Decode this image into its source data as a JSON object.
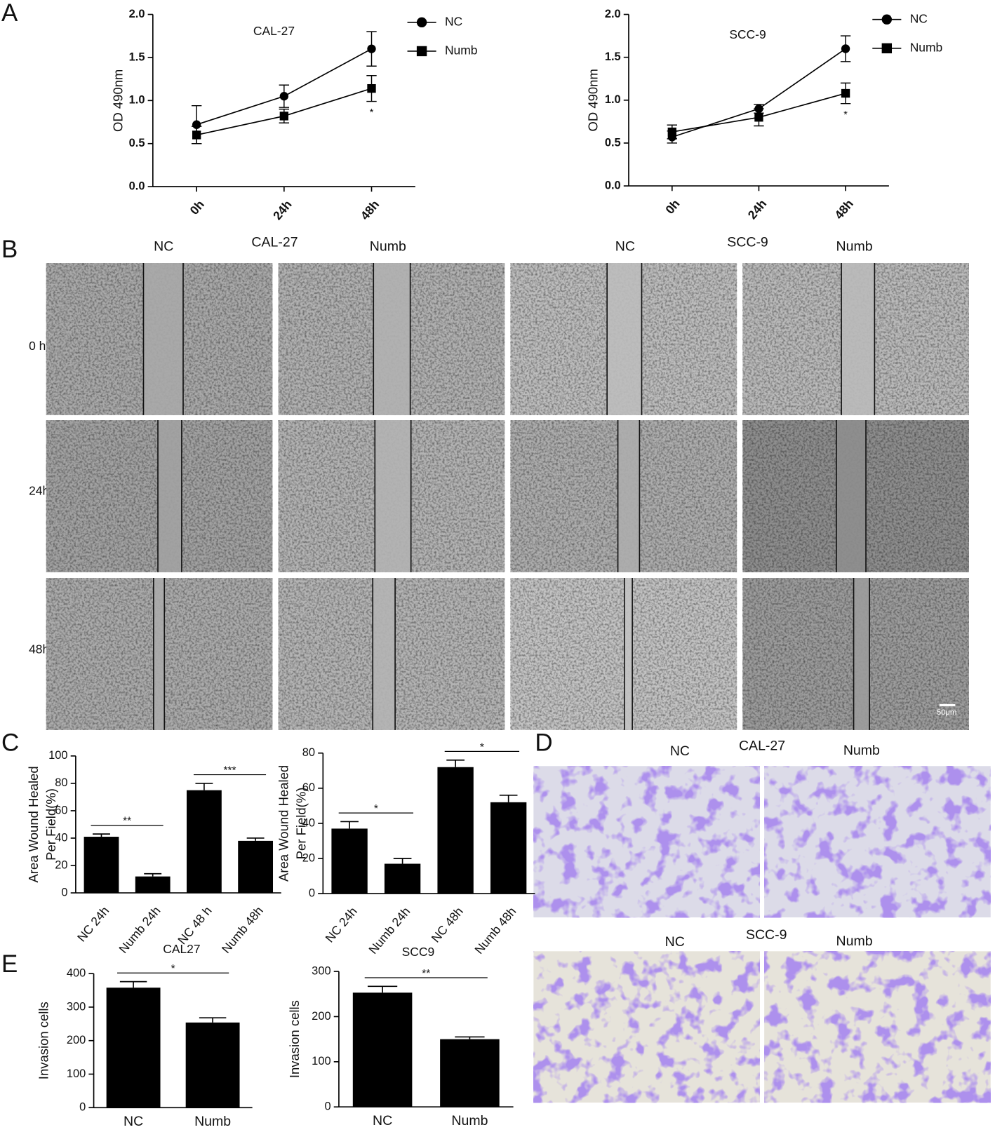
{
  "chart_data": [
    {
      "type": "line",
      "title": "CAL-27",
      "ylabel": "OD 490nm",
      "categories": [
        "0h",
        "24h",
        "48h"
      ],
      "ylim": [
        0,
        2
      ],
      "yticks": [
        {
          "value": 0,
          "label": "0.0"
        },
        {
          "value": 0.5,
          "label": "0.5"
        },
        {
          "value": 1,
          "label": "1.0"
        },
        {
          "value": 1.5,
          "label": "1.5"
        },
        {
          "value": 2,
          "label": "2.0"
        }
      ],
      "series": [
        {
          "name": "NC",
          "color": "#000000",
          "marker": "circle",
          "values": [
            0.72,
            1.05,
            1.6
          ],
          "errors": [
            0.22,
            0.13,
            0.2
          ]
        },
        {
          "name": "Numb",
          "color": "#000000",
          "marker": "square",
          "values": [
            0.6,
            0.82,
            1.14
          ],
          "errors": [
            0.1,
            0.08,
            0.15
          ]
        }
      ],
      "annotations": [
        "*"
      ]
    },
    {
      "type": "line",
      "title": "SCC-9",
      "ylabel": "OD 490nm",
      "categories": [
        "0h",
        "24h",
        "48h"
      ],
      "ylim": [
        0,
        2
      ],
      "yticks": [
        {
          "value": 0,
          "label": "0.0"
        },
        {
          "value": 0.5,
          "label": "0.5"
        },
        {
          "value": 1,
          "label": "1.0"
        },
        {
          "value": 1.5,
          "label": "1.5"
        },
        {
          "value": 2,
          "label": "2.0"
        }
      ],
      "series": [
        {
          "name": "NC",
          "color": "#000000",
          "marker": "circle",
          "values": [
            0.57,
            0.9,
            1.6
          ],
          "errors": [
            0.07,
            0.05,
            0.15
          ]
        },
        {
          "name": "Numb",
          "color": "#000000",
          "marker": "square",
          "values": [
            0.63,
            0.8,
            1.08
          ],
          "errors": [
            0.08,
            0.1,
            0.12
          ]
        }
      ],
      "annotations": [
        "*"
      ]
    },
    {
      "type": "bar",
      "ylabel": [
        "Area Wound Healed",
        "Per Field(%)"
      ],
      "categories": [
        "NC 24h",
        "Numb 24h",
        "NC 48 h",
        "Numb 48h"
      ],
      "values": [
        41,
        12,
        75,
        38
      ],
      "errors": [
        2,
        2,
        5,
        2
      ],
      "color": "#000000",
      "ylim": [
        0,
        100
      ],
      "yticks": [
        0,
        20,
        40,
        60,
        80,
        100
      ],
      "annotations": [
        "**",
        "***"
      ]
    },
    {
      "type": "bar",
      "ylabel": [
        "Area Wound Healed",
        "Per Field(%)"
      ],
      "categories": [
        "NC 24h",
        "Numb 24h",
        "NC 48h",
        "Numb 48h"
      ],
      "values": [
        37,
        17,
        72,
        52
      ],
      "errors": [
        4,
        3,
        4,
        4
      ],
      "color": "#000000",
      "ylim": [
        0,
        80
      ],
      "yticks": [
        0,
        20,
        40,
        60,
        80
      ],
      "annotations": [
        "*",
        "*"
      ]
    },
    {
      "type": "bar",
      "title": "CAL27",
      "ylabel": "Invasion cells",
      "categories": [
        "NC",
        "Numb"
      ],
      "values": [
        358,
        254
      ],
      "errors": [
        18,
        14
      ],
      "color": "#000000",
      "ylim": [
        0,
        400
      ],
      "yticks": [
        0,
        100,
        200,
        300,
        400
      ],
      "annotations": [
        "*"
      ]
    },
    {
      "type": "bar",
      "title": "SCC9",
      "ylabel": "Invasion cells",
      "categories": [
        "NC",
        "Numb"
      ],
      "values": [
        253,
        150
      ],
      "errors": [
        14,
        5
      ],
      "color": "#000000",
      "ylim": [
        0,
        300
      ],
      "yticks": [
        0,
        100,
        200,
        300
      ],
      "annotations": [
        "**"
      ]
    }
  ],
  "figure": {
    "panel_labels": [
      "A",
      "B",
      "C",
      "D",
      "E"
    ],
    "wound_healing": {
      "headers": [
        "NC",
        "CAL-27",
        "Numb",
        "NC",
        "SCC-9",
        "Numb"
      ],
      "rows": [
        "0 h",
        "24h",
        "48h"
      ],
      "scale_bar": "50μm"
    },
    "invasion_images": {
      "headers": [
        "NC",
        "CAL-27",
        "Numb",
        "NC",
        "SCC-9",
        "Numb"
      ]
    }
  }
}
